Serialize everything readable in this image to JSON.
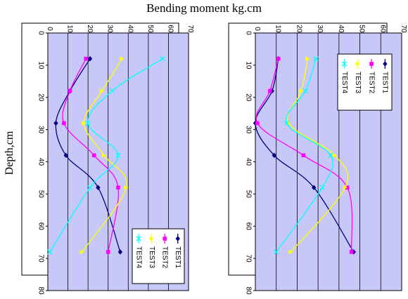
{
  "title": "Bending moment kg.cm",
  "ylabel": "Depth,cm",
  "chart_data": [
    {
      "type": "line",
      "orientation": "rotated-90",
      "xaxis_label": "Depth,cm",
      "yaxis_label": "Bending moment kg.cm",
      "xlim": [
        0,
        80
      ],
      "ylim": [
        0,
        70
      ],
      "x_ticks": [
        0,
        10,
        20,
        30,
        40,
        50,
        60,
        70,
        80
      ],
      "y_ticks": [
        0,
        10,
        20,
        30,
        40,
        50,
        60,
        70
      ],
      "grid": true,
      "legend_position": "bottom-right",
      "series": [
        {
          "name": "TEST1",
          "color": "#000080",
          "marker": "diamond",
          "x": [
            8,
            18,
            28,
            38,
            48,
            68
          ],
          "y": [
            21,
            11,
            4,
            9,
            25,
            36
          ]
        },
        {
          "name": "TEST2",
          "color": "#ff00ff",
          "marker": "square",
          "x": [
            8,
            18,
            28,
            38,
            48,
            68
          ],
          "y": [
            19,
            11,
            8,
            23,
            35,
            30
          ]
        },
        {
          "name": "TEST3",
          "color": "#ffff00",
          "marker": "triangle",
          "x": [
            8,
            18,
            28,
            38,
            48,
            68
          ],
          "y": [
            37,
            27,
            18,
            28,
            39,
            17
          ]
        },
        {
          "name": "TEST4",
          "color": "#00ffff",
          "marker": "x",
          "x": [
            8,
            18,
            28,
            38,
            48,
            68
          ],
          "y": [
            57,
            32,
            20,
            35,
            21,
            1
          ]
        }
      ]
    },
    {
      "type": "line",
      "orientation": "rotated-90",
      "xaxis_label": "Depth,cm",
      "yaxis_label": "Bending moment kg.cm",
      "xlim": [
        0,
        80
      ],
      "ylim": [
        0,
        70
      ],
      "x_ticks": [
        0,
        10,
        20,
        30,
        40,
        50,
        60,
        70,
        80
      ],
      "y_ticks": [
        0,
        10,
        20,
        30,
        40,
        50,
        60,
        70
      ],
      "grid": true,
      "legend_position": "top-right",
      "series": [
        {
          "name": "TEST1",
          "color": "#000080",
          "marker": "diamond",
          "x": [
            8,
            18,
            28,
            38,
            48,
            68
          ],
          "y": [
            11,
            8,
            0,
            9,
            28,
            47
          ]
        },
        {
          "name": "TEST2",
          "color": "#ff00ff",
          "marker": "square",
          "x": [
            8,
            18,
            28,
            38,
            48,
            68
          ],
          "y": [
            11,
            7,
            1,
            23,
            44,
            46
          ]
        },
        {
          "name": "TEST3",
          "color": "#ffff00",
          "marker": "triangle",
          "x": [
            8,
            18,
            28,
            38,
            48,
            68
          ],
          "y": [
            25,
            22,
            16,
            38,
            43,
            17
          ]
        },
        {
          "name": "TEST4",
          "color": "#00ffff",
          "marker": "x",
          "x": [
            8,
            18,
            28,
            38,
            48,
            68
          ],
          "y": [
            29,
            24,
            15,
            36,
            32,
            10
          ]
        }
      ]
    }
  ]
}
